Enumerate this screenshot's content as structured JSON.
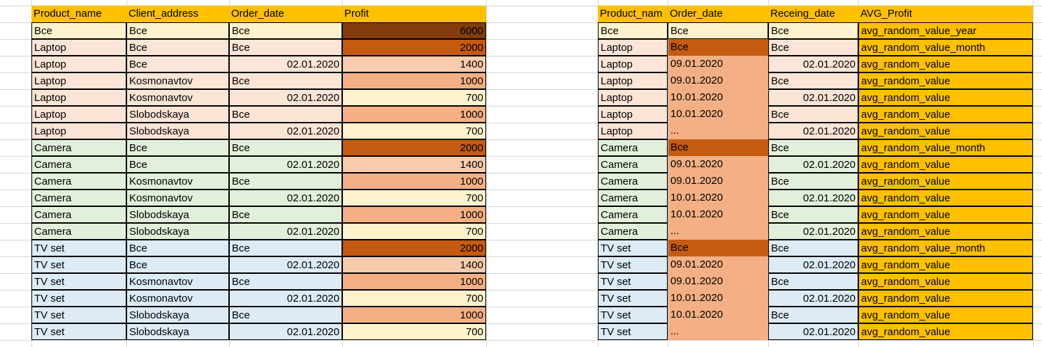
{
  "palette": {
    "header": "#ffc000",
    "all_row": "#fff2cc",
    "laptop_row": "#fce4d6",
    "camera_row": "#e2efda",
    "tvset_row": "#ddebf7",
    "profit_6000": "#843c0c",
    "profit_2000": "#c55a11",
    "profit_1400": "#f8cbad",
    "profit_1000": "#f4b084",
    "profit_700": "#fff2cc",
    "order_date_col": "#f4b084",
    "order_date_all": "#c55a11",
    "avg_col": "#ffc000"
  },
  "left_table": {
    "headers": [
      "Product_name",
      "Client_address",
      "Order_date",
      "Profit"
    ],
    "rows": [
      {
        "product": "Все",
        "address": "Все",
        "date": "Все",
        "profit": "6000",
        "group": "all",
        "profit_level": "6000"
      },
      {
        "product": "Laptop",
        "address": "Все",
        "date": "Все",
        "profit": "2000",
        "group": "laptop",
        "profit_level": "2000"
      },
      {
        "product": "Laptop",
        "address": "Все",
        "date": "02.01.2020",
        "profit": "1400",
        "group": "laptop",
        "profit_level": "1400"
      },
      {
        "product": "Laptop",
        "address": "Kosmonavtov",
        "date": "Все",
        "profit": "1000",
        "group": "laptop",
        "profit_level": "1000"
      },
      {
        "product": "Laptop",
        "address": "Kosmonavtov",
        "date": "02.01.2020",
        "profit": "700",
        "group": "laptop",
        "profit_level": "700"
      },
      {
        "product": "Laptop",
        "address": "Slobodskaya",
        "date": "Все",
        "profit": "1000",
        "group": "laptop",
        "profit_level": "1000"
      },
      {
        "product": "Laptop",
        "address": "Slobodskaya",
        "date": "02.01.2020",
        "profit": "700",
        "group": "laptop",
        "profit_level": "700"
      },
      {
        "product": "Camera",
        "address": "Все",
        "date": "Все",
        "profit": "2000",
        "group": "camera",
        "profit_level": "2000"
      },
      {
        "product": "Camera",
        "address": "Все",
        "date": "02.01.2020",
        "profit": "1400",
        "group": "camera",
        "profit_level": "1400"
      },
      {
        "product": "Camera",
        "address": "Kosmonavtov",
        "date": "Все",
        "profit": "1000",
        "group": "camera",
        "profit_level": "1000"
      },
      {
        "product": "Camera",
        "address": "Kosmonavtov",
        "date": "02.01.2020",
        "profit": "700",
        "group": "camera",
        "profit_level": "700"
      },
      {
        "product": "Camera",
        "address": "Slobodskaya",
        "date": "Все",
        "profit": "1000",
        "group": "camera",
        "profit_level": "1000"
      },
      {
        "product": "Camera",
        "address": "Slobodskaya",
        "date": "02.01.2020",
        "profit": "700",
        "group": "camera",
        "profit_level": "700"
      },
      {
        "product": "TV set",
        "address": "Все",
        "date": "Все",
        "profit": "2000",
        "group": "tvset",
        "profit_level": "2000"
      },
      {
        "product": "TV set",
        "address": "Все",
        "date": "02.01.2020",
        "profit": "1400",
        "group": "tvset",
        "profit_level": "1400"
      },
      {
        "product": "TV set",
        "address": "Kosmonavtov",
        "date": "Все",
        "profit": "1000",
        "group": "tvset",
        "profit_level": "1000"
      },
      {
        "product": "TV set",
        "address": "Kosmonavtov",
        "date": "02.01.2020",
        "profit": "700",
        "group": "tvset",
        "profit_level": "700"
      },
      {
        "product": "TV set",
        "address": "Slobodskaya",
        "date": "Все",
        "profit": "1000",
        "group": "tvset",
        "profit_level": "1000"
      },
      {
        "product": "TV set",
        "address": "Slobodskaya",
        "date": "02.01.2020",
        "profit": "700",
        "group": "tvset",
        "profit_level": "700"
      }
    ]
  },
  "right_table": {
    "headers": [
      "Product_nam",
      "Order_date",
      "Receing_date",
      "AVG_Profit"
    ],
    "rows": [
      {
        "product": "Все",
        "order": "Все",
        "receive": "Все",
        "avg": "avg_random_value_year",
        "group": "all",
        "order_style": "all"
      },
      {
        "product": "Laptop",
        "order": "Все",
        "receive": "Все",
        "avg": "avg_random_value_month",
        "group": "laptop",
        "order_style": "dark"
      },
      {
        "product": "Laptop",
        "order": "09.01.2020",
        "receive": "02.01.2020",
        "avg": "avg_random_value",
        "group": "laptop",
        "order_style": "light"
      },
      {
        "product": "Laptop",
        "order": "09.01.2020",
        "receive": "Все",
        "avg": "avg_random_value",
        "group": "laptop",
        "order_style": "light"
      },
      {
        "product": "Laptop",
        "order": "10.01.2020",
        "receive": "02.01.2020",
        "avg": "avg_random_value",
        "group": "laptop",
        "order_style": "light"
      },
      {
        "product": "Laptop",
        "order": "10.01.2020",
        "receive": "Все",
        "avg": "avg_random_value",
        "group": "laptop",
        "order_style": "light"
      },
      {
        "product": "Laptop",
        "order": "...",
        "receive": "02.01.2020",
        "avg": "avg_random_value",
        "group": "laptop",
        "order_style": "light"
      },
      {
        "product": "Camera",
        "order": "Все",
        "receive": "Все",
        "avg": "avg_random_value_month",
        "group": "camera",
        "order_style": "dark"
      },
      {
        "product": "Camera",
        "order": "09.01.2020",
        "receive": "02.01.2020",
        "avg": "avg_random_value",
        "group": "camera",
        "order_style": "light"
      },
      {
        "product": "Camera",
        "order": "09.01.2020",
        "receive": "Все",
        "avg": "avg_random_value",
        "group": "camera",
        "order_style": "light"
      },
      {
        "product": "Camera",
        "order": "10.01.2020",
        "receive": "02.01.2020",
        "avg": "avg_random_value",
        "group": "camera",
        "order_style": "light"
      },
      {
        "product": "Camera",
        "order": "10.01.2020",
        "receive": "Все",
        "avg": "avg_random_value",
        "group": "camera",
        "order_style": "light"
      },
      {
        "product": "Camera",
        "order": "...",
        "receive": "02.01.2020",
        "avg": "avg_random_value",
        "group": "camera",
        "order_style": "light"
      },
      {
        "product": "TV set",
        "order": "Все",
        "receive": "Все",
        "avg": "avg_random_value_month",
        "group": "tvset",
        "order_style": "dark"
      },
      {
        "product": "TV set",
        "order": "09.01.2020",
        "receive": "02.01.2020",
        "avg": "avg_random_value",
        "group": "tvset",
        "order_style": "light"
      },
      {
        "product": "TV set",
        "order": "09.01.2020",
        "receive": "Все",
        "avg": "avg_random_value",
        "group": "tvset",
        "order_style": "light"
      },
      {
        "product": "TV set",
        "order": "10.01.2020",
        "receive": "02.01.2020",
        "avg": "avg_random_value",
        "group": "tvset",
        "order_style": "light"
      },
      {
        "product": "TV set",
        "order": "10.01.2020",
        "receive": "Все",
        "avg": "avg_random_value",
        "group": "tvset",
        "order_style": "light"
      },
      {
        "product": "TV set",
        "order": "...",
        "receive": "02.01.2020",
        "avg": "avg_random_value",
        "group": "tvset",
        "order_style": "light"
      }
    ]
  }
}
